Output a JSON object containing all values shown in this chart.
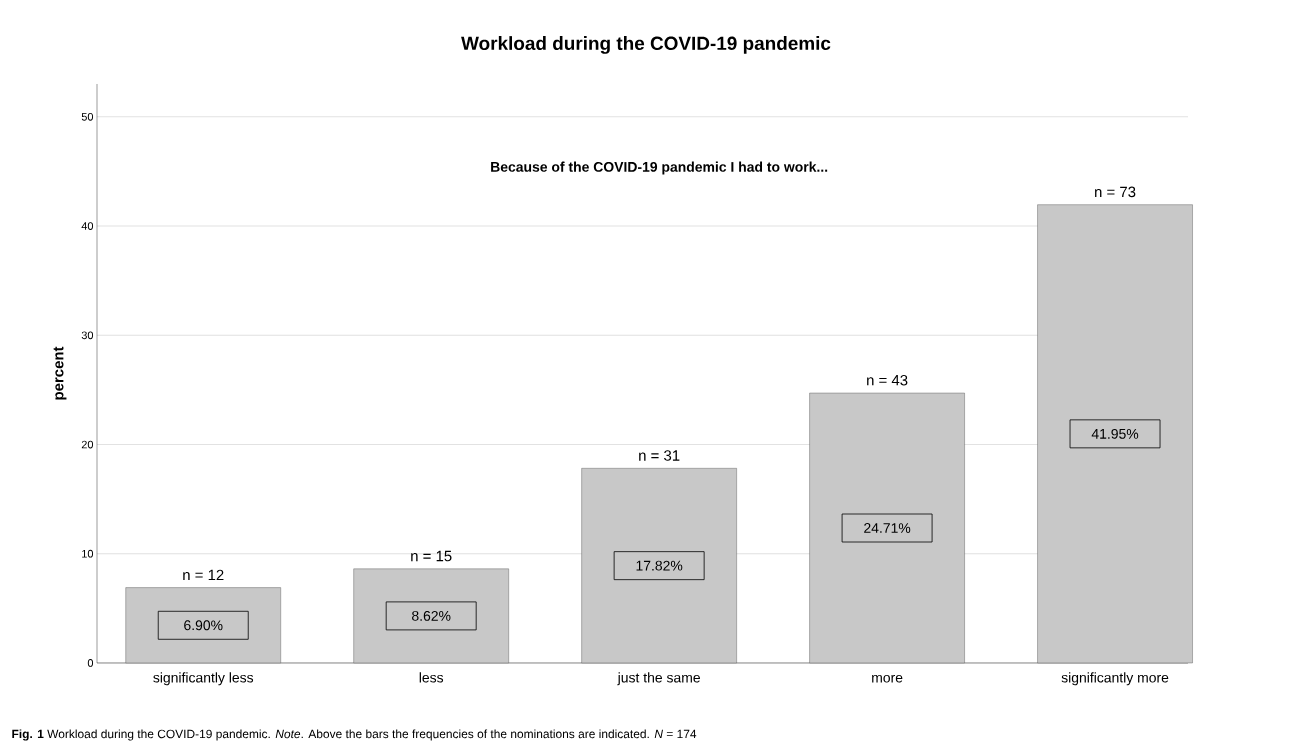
{
  "chart_data": {
    "type": "bar",
    "title": "Workload during the COVID-19 pandemic",
    "subtitle": "Because of the COVID-19 pandemic I had to work...",
    "ylabel": "percent",
    "categories": [
      "significantly less",
      "less",
      "just the same",
      "more",
      "significantly more"
    ],
    "values": [
      6.9,
      8.62,
      17.82,
      24.71,
      41.95
    ],
    "value_labels": [
      "6.90%",
      "8.62%",
      "17.82%",
      "24.71%",
      "41.95%"
    ],
    "color": "#c8c8c8",
    "ylim": [
      0,
      53
    ],
    "yticks": [
      0,
      10,
      20,
      30,
      40,
      50
    ],
    "grid": "y",
    "annotations": [
      {
        "text": "n = 12",
        "x": "significantly less",
        "y": 6.9
      },
      {
        "text": "n = 15",
        "x": "less",
        "y": 8.62
      },
      {
        "text": "n = 31",
        "x": "just the same",
        "y": 17.82
      },
      {
        "text": "n = 43",
        "x": "more",
        "y": 24.71
      },
      {
        "text": "n = 73",
        "x": "significantly more",
        "y": 41.95
      },
      "**Fig. 1** Workload during the COVID-19 pandemic. *Note*. Above the bars the frequencies of the nominations are indicated. *N* = 174"
    ]
  }
}
